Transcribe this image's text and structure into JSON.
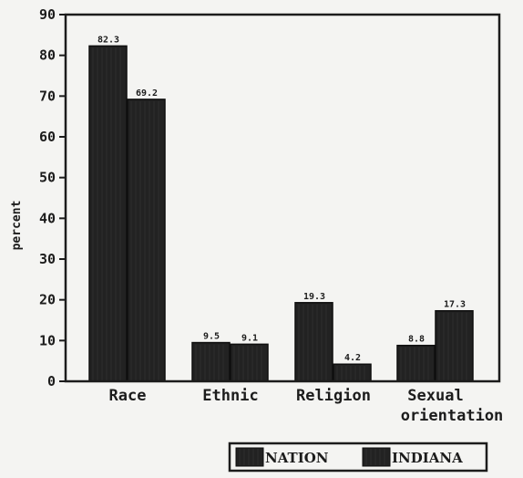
{
  "chart_data": {
    "type": "bar",
    "categories": [
      "Race",
      "Ethnic",
      "Religion",
      [
        "Sexual",
        "orientation"
      ]
    ],
    "series": [
      {
        "name": "NATION",
        "values": [
          82.3,
          9.5,
          19.3,
          8.8
        ]
      },
      {
        "name": "INDIANA",
        "values": [
          69.2,
          9.1,
          4.2,
          17.3
        ]
      }
    ],
    "data_labels": [
      [
        "82.3",
        "9.5",
        "19.3",
        "8.8"
      ],
      [
        "69.2",
        "9.1",
        "4.2",
        "17.3"
      ]
    ],
    "ylabel": "percent",
    "ylim": [
      0,
      90
    ],
    "yticks": [
      "0",
      "10",
      "20",
      "30",
      "40",
      "50",
      "60",
      "70",
      "80",
      "90"
    ],
    "grid": false,
    "legend_position": "bottom-right",
    "colors": {
      "bar": "#222222",
      "axis": "#1c1c1c",
      "background": "#f4f4f2"
    }
  }
}
